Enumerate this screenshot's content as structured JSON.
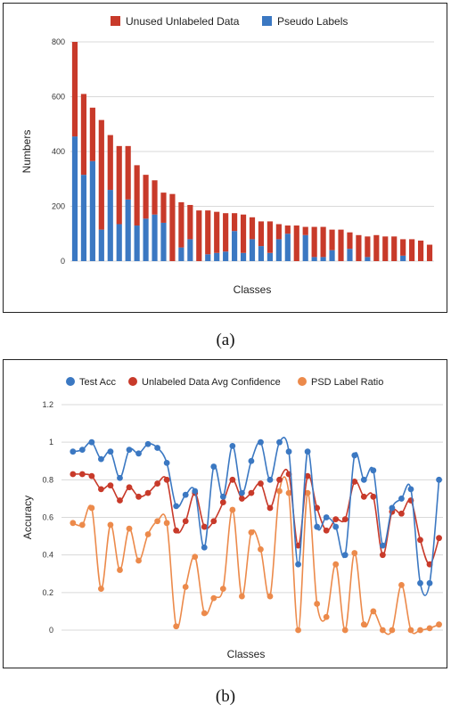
{
  "captions": {
    "a": "(a)",
    "b": "(b)"
  },
  "colors": {
    "red": "#c83a2a",
    "blue": "#3b78c2",
    "orange": "#ec8a4b",
    "grid": "#d9d9d9"
  },
  "chart_data": [
    {
      "type": "bar",
      "stacked": true,
      "legend_position": "top",
      "xlabel": "Classes",
      "ylabel": "Numbers",
      "ylim": [
        0,
        800
      ],
      "yticks": [
        0,
        200,
        400,
        600,
        800
      ],
      "grid": true,
      "series": [
        {
          "name": "Pseudo Labels",
          "color": "#3b78c2",
          "values": [
            455,
            315,
            365,
            115,
            260,
            135,
            225,
            130,
            155,
            170,
            140,
            0,
            50,
            80,
            0,
            25,
            30,
            35,
            110,
            30,
            80,
            55,
            30,
            80,
            100,
            0,
            95,
            15,
            15,
            40,
            0,
            45,
            0,
            15,
            0,
            0,
            0,
            20,
            0,
            0,
            0
          ]
        },
        {
          "name": "Unused Unlabeled Data",
          "color": "#c83a2a",
          "values": [
            345,
            295,
            195,
            400,
            200,
            285,
            195,
            220,
            160,
            125,
            110,
            245,
            165,
            125,
            185,
            160,
            150,
            140,
            65,
            140,
            80,
            90,
            115,
            55,
            30,
            130,
            30,
            110,
            110,
            75,
            115,
            60,
            95,
            75,
            95,
            90,
            90,
            60,
            80,
            75,
            60
          ]
        }
      ]
    },
    {
      "type": "line",
      "smooth": true,
      "legend_position": "top",
      "xlabel": "Classes",
      "ylabel": "Accuracy",
      "ylim": [
        0,
        1.2
      ],
      "yticks": [
        0,
        0.2,
        0.4,
        0.6,
        0.8,
        1,
        1.2
      ],
      "grid": true,
      "series": [
        {
          "name": "Test Acc",
          "color": "#3b78c2",
          "values": [
            0.95,
            0.96,
            1.0,
            0.91,
            0.95,
            0.81,
            0.96,
            0.94,
            0.99,
            0.97,
            0.89,
            0.66,
            0.72,
            0.74,
            0.44,
            0.87,
            0.71,
            0.98,
            0.73,
            0.9,
            1.0,
            0.8,
            1.0,
            0.95,
            0.35,
            0.95,
            0.55,
            0.6,
            0.55,
            0.4,
            0.93,
            0.8,
            0.85,
            0.45,
            0.65,
            0.7,
            0.75,
            0.25,
            0.25,
            0.8
          ]
        },
        {
          "name": "Unlabeled Data Avg Confidence",
          "color": "#c83a2a",
          "values": [
            0.83,
            0.83,
            0.82,
            0.75,
            0.77,
            0.69,
            0.76,
            0.71,
            0.73,
            0.78,
            0.8,
            0.53,
            0.58,
            0.73,
            0.55,
            0.58,
            0.68,
            0.8,
            0.7,
            0.73,
            0.78,
            0.65,
            0.8,
            0.83,
            0.45,
            0.82,
            0.65,
            0.53,
            0.59,
            0.59,
            0.79,
            0.71,
            0.71,
            0.4,
            0.63,
            0.62,
            0.69,
            0.48,
            0.35,
            0.49
          ]
        },
        {
          "name": "PSD Label Ratio",
          "color": "#ec8a4b",
          "values": [
            0.57,
            0.56,
            0.65,
            0.22,
            0.56,
            0.32,
            0.54,
            0.37,
            0.51,
            0.58,
            0.57,
            0.02,
            0.23,
            0.39,
            0.09,
            0.17,
            0.22,
            0.64,
            0.18,
            0.52,
            0.43,
            0.18,
            0.74,
            0.73,
            0.0,
            0.73,
            0.14,
            0.07,
            0.35,
            0.0,
            0.41,
            0.03,
            0.1,
            0.0,
            0.0,
            0.24,
            0.0,
            0.0,
            0.01,
            0.03
          ]
        }
      ]
    }
  ]
}
